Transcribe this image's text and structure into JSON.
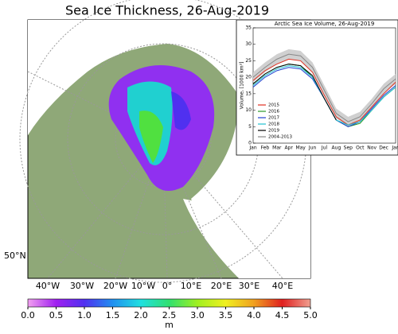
{
  "title": "Sea Ice Thickness, 26-Aug-2019",
  "map": {
    "lat_label": "50°N",
    "lon_labels": [
      "40°W",
      "30°W",
      "20°W",
      "10°W",
      "0°",
      "10°E",
      "20°E",
      "30°E",
      "40°E"
    ]
  },
  "colorbar": {
    "lim": [
      0,
      5
    ],
    "unit": "m",
    "ticks": [
      {
        "value": 0,
        "label": "0.0"
      },
      {
        "value": 0.5,
        "label": "0.5"
      },
      {
        "value": 1,
        "label": "1.0"
      },
      {
        "value": 1.5,
        "label": "1.5"
      },
      {
        "value": 2,
        "label": "2.0"
      },
      {
        "value": 2.5,
        "label": "2.5"
      },
      {
        "value": 3,
        "label": "3.0"
      },
      {
        "value": 3.5,
        "label": "3.5"
      },
      {
        "value": 4,
        "label": "4.0"
      },
      {
        "value": 4.5,
        "label": "4.5"
      },
      {
        "value": 5,
        "label": "5.0"
      }
    ],
    "colors": [
      "#f2a0f0",
      "#a020f0",
      "#5030f0",
      "#2090f0",
      "#20e0e0",
      "#30e070",
      "#a0f020",
      "#f0f020",
      "#f0a020",
      "#e02020",
      "#f0a090"
    ]
  },
  "chart_data": {
    "type": "line",
    "title": "Arctic Sea Ice Volume, 26-Aug-2019",
    "ylabel": "Volume, [1000 km³]",
    "categories": [
      "Jan",
      "Feb",
      "Mar",
      "Apr",
      "May",
      "Jun",
      "Jul",
      "Aug",
      "Sep",
      "Oct",
      "Nov",
      "Dec",
      "Jan"
    ],
    "ylim": [
      0,
      35
    ],
    "yticks": [
      0,
      5,
      10,
      15,
      20,
      25,
      30,
      35
    ],
    "series": [
      {
        "name": "2015",
        "color": "#e03020",
        "values": [
          19,
          22,
          24,
          25.5,
          25,
          21.5,
          14.5,
          8,
          5.5,
          7,
          11,
          15,
          18.5
        ]
      },
      {
        "name": "2016",
        "color": "#2a9a2a",
        "values": [
          18,
          21,
          23,
          24,
          23.5,
          20,
          13.5,
          7,
          5,
          6,
          10,
          14,
          17
        ]
      },
      {
        "name": "2017",
        "color": "#2040d0",
        "values": [
          17,
          20,
          22,
          23,
          22.5,
          19.5,
          13.5,
          7,
          5,
          6.5,
          10.5,
          14.5,
          17.5
        ]
      },
      {
        "name": "2018",
        "color": "#20c0d0",
        "values": [
          17.5,
          20.5,
          22.5,
          23.5,
          23,
          20,
          13.5,
          7,
          5.5,
          6.5,
          10,
          14,
          17
        ]
      },
      {
        "name": "2019",
        "color": "#000000",
        "values": [
          18,
          21,
          23,
          24,
          23.5,
          20.5,
          13.5,
          7,
          null,
          null,
          null,
          null,
          null
        ]
      },
      {
        "name": "2004-2013",
        "color": "#888888",
        "values": [
          20,
          23,
          25.5,
          27,
          26.5,
          23,
          16,
          9,
          6.5,
          8,
          12,
          16.5,
          19.5
        ]
      }
    ]
  }
}
